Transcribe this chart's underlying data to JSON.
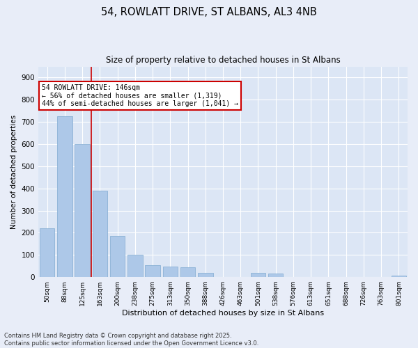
{
  "title_line1": "54, ROWLATT DRIVE, ST ALBANS, AL3 4NB",
  "title_line2": "Size of property relative to detached houses in St Albans",
  "xlabel": "Distribution of detached houses by size in St Albans",
  "ylabel": "Number of detached properties",
  "categories": [
    "50sqm",
    "88sqm",
    "125sqm",
    "163sqm",
    "200sqm",
    "238sqm",
    "275sqm",
    "313sqm",
    "350sqm",
    "388sqm",
    "426sqm",
    "463sqm",
    "501sqm",
    "538sqm",
    "576sqm",
    "613sqm",
    "651sqm",
    "688sqm",
    "726sqm",
    "763sqm",
    "801sqm"
  ],
  "values": [
    220,
    725,
    600,
    390,
    185,
    100,
    55,
    48,
    45,
    20,
    0,
    0,
    18,
    15,
    0,
    0,
    0,
    0,
    0,
    0,
    8
  ],
  "bar_color": "#adc8e8",
  "bar_edge_color": "#80aad0",
  "vline_x_index": 2.5,
  "vline_color": "#cc0000",
  "annotation_title": "54 ROWLATT DRIVE: 146sqm",
  "annotation_line1": "← 56% of detached houses are smaller (1,319)",
  "annotation_line2": "44% of semi-detached houses are larger (1,041) →",
  "annotation_box_color": "#cc0000",
  "ylim": [
    0,
    950
  ],
  "yticks": [
    0,
    100,
    200,
    300,
    400,
    500,
    600,
    700,
    800,
    900
  ],
  "background_color": "#e8edf8",
  "plot_background_color": "#dce6f5",
  "grid_color": "#ffffff",
  "footer_line1": "Contains HM Land Registry data © Crown copyright and database right 2025.",
  "footer_line2": "Contains public sector information licensed under the Open Government Licence v3.0."
}
